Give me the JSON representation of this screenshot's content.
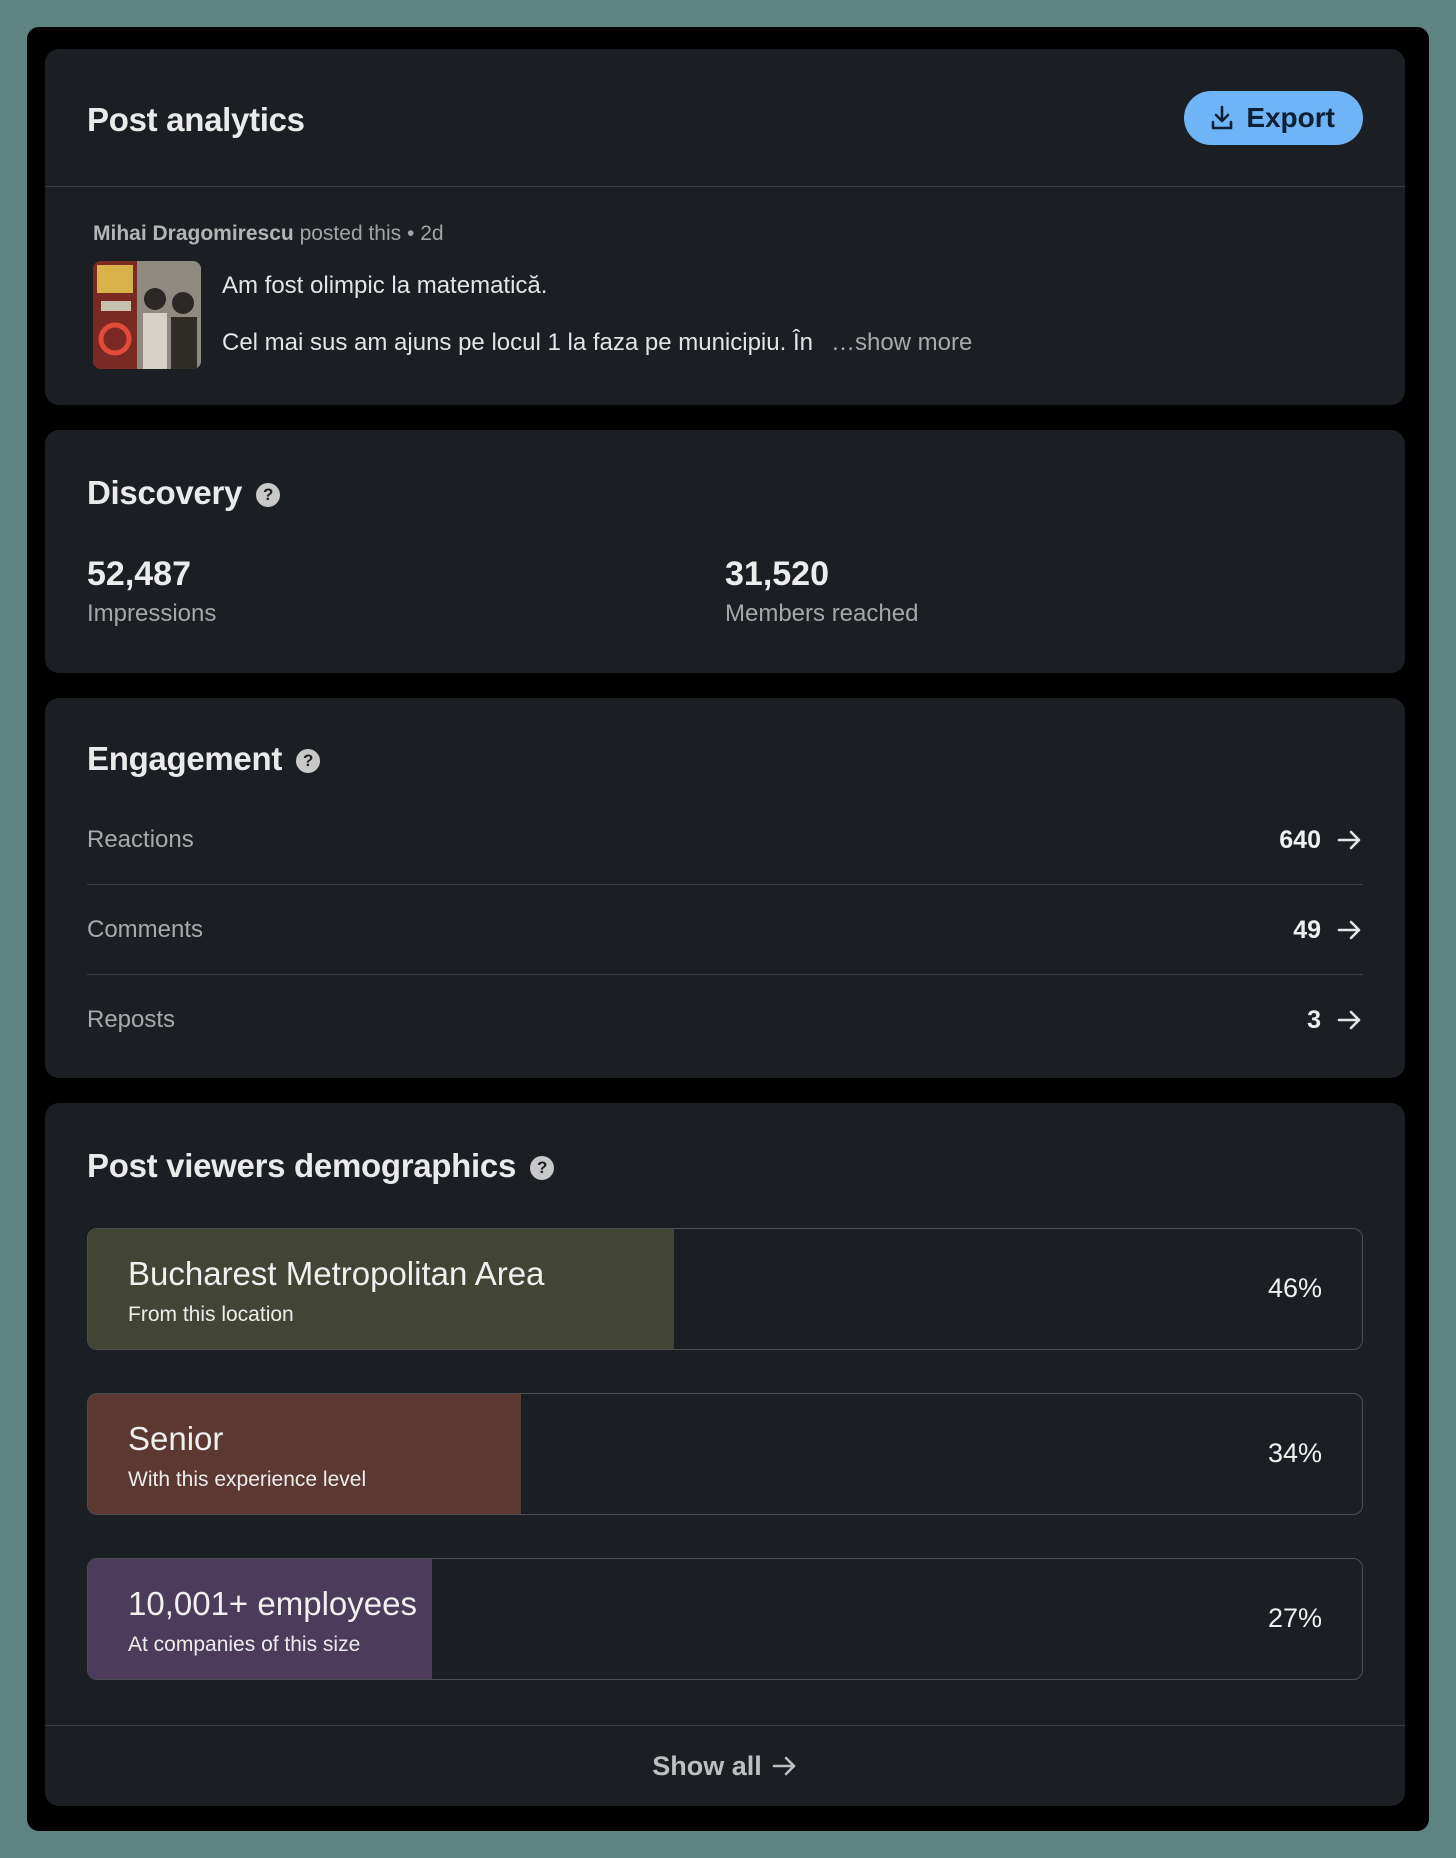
{
  "header": {
    "title": "Post analytics",
    "export_label": "Export",
    "export_color": "#6eb4f7"
  },
  "post": {
    "author": "Mihai Dragomirescu",
    "posted_suffix": "posted this",
    "separator": "•",
    "age": "2d",
    "line1": "Am fost olimpic la matematică.",
    "line2": "Cel mai sus am ajuns pe locul 1 la faza pe municipiu. În",
    "show_more": "…show more"
  },
  "discovery": {
    "title": "Discovery",
    "help_icon": "question-circle-icon",
    "metrics": [
      {
        "value": "52,487",
        "label": "Impressions"
      },
      {
        "value": "31,520",
        "label": "Members reached"
      }
    ]
  },
  "engagement": {
    "title": "Engagement",
    "help_icon": "question-circle-icon",
    "rows": [
      {
        "label": "Reactions",
        "value": "640"
      },
      {
        "label": "Comments",
        "value": "49"
      },
      {
        "label": "Reposts",
        "value": "3"
      }
    ]
  },
  "demographics": {
    "title": "Post viewers demographics",
    "help_icon": "question-circle-icon",
    "items": [
      {
        "name": "Bucharest Metropolitan Area",
        "sub": "From this location",
        "percent_label": "46%",
        "percent": 46,
        "color": "#434534"
      },
      {
        "name": "Senior",
        "sub": "With this experience level",
        "percent_label": "34%",
        "percent": 34,
        "color": "#5b3830"
      },
      {
        "name": "10,001+ employees",
        "sub": "At companies of this size",
        "percent_label": "27%",
        "percent": 27,
        "color": "#4a3c5a"
      }
    ],
    "show_all_label": "Show all"
  }
}
